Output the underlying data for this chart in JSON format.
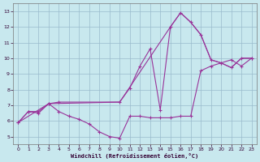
{
  "xlabel": "Windchill (Refroidissement éolien,°C)",
  "bg_color": "#c8e8ee",
  "line_color": "#993399",
  "grid_color": "#99bbcc",
  "axis_color": "#330033",
  "xlim": [
    -0.5,
    23.5
  ],
  "ylim": [
    4.5,
    13.5
  ],
  "xticks": [
    0,
    1,
    2,
    3,
    4,
    5,
    6,
    7,
    8,
    9,
    10,
    11,
    12,
    13,
    14,
    15,
    16,
    17,
    18,
    19,
    20,
    21,
    22,
    23
  ],
  "yticks": [
    5,
    6,
    7,
    8,
    9,
    10,
    11,
    12,
    13
  ],
  "line_spiky_x": [
    0,
    1,
    2,
    3,
    4,
    10,
    11,
    12,
    13,
    14,
    15,
    16,
    17,
    18,
    19,
    20,
    21,
    22,
    23
  ],
  "line_spiky_y": [
    5.9,
    6.6,
    6.6,
    7.1,
    7.2,
    7.2,
    8.1,
    9.5,
    10.6,
    6.7,
    12.0,
    12.9,
    12.3,
    11.5,
    9.9,
    9.7,
    9.4,
    10.0,
    10.0
  ],
  "line_wavy_x": [
    0,
    1,
    2,
    3,
    4,
    5,
    6,
    7,
    8,
    9,
    10,
    11,
    12,
    13,
    14,
    15,
    16,
    17,
    18,
    19,
    20,
    21,
    22,
    23
  ],
  "line_wavy_y": [
    5.9,
    6.6,
    6.5,
    7.1,
    6.6,
    6.3,
    6.1,
    5.8,
    5.3,
    5.0,
    4.9,
    6.3,
    6.3,
    6.2,
    6.2,
    6.2,
    6.3,
    6.3,
    9.2,
    9.5,
    9.7,
    9.9,
    9.5,
    10.0
  ],
  "line_diag_x": [
    0,
    3,
    10,
    15,
    16,
    17,
    18,
    19,
    20,
    21,
    22,
    23
  ],
  "line_diag_y": [
    5.9,
    7.1,
    7.2,
    12.0,
    12.9,
    12.3,
    11.5,
    9.9,
    9.7,
    9.4,
    10.0,
    10.0
  ]
}
